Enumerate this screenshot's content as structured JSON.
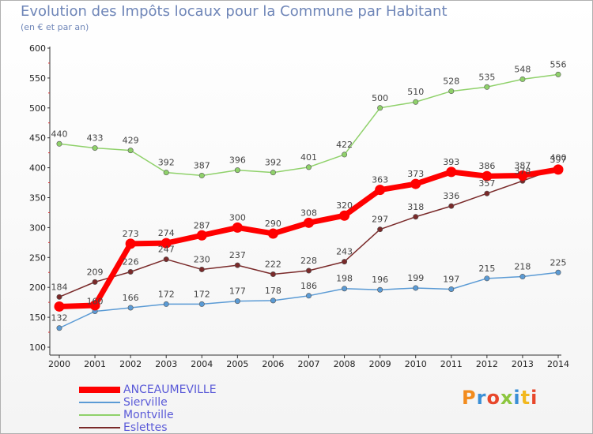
{
  "title": "Evolution des Impôts locaux pour la Commune par Habitant",
  "subtitle": "(en € et par an)",
  "logo": "Proxiti",
  "chart_data": {
    "type": "line",
    "x": [
      "2000",
      "2001",
      "2002",
      "2003",
      "2004",
      "2005",
      "2006",
      "2007",
      "2008",
      "2009",
      "2010",
      "2011",
      "2012",
      "2013",
      "2014"
    ],
    "ylim": [
      100,
      600
    ],
    "yticks": [
      100,
      150,
      200,
      250,
      300,
      350,
      400,
      450,
      500,
      550,
      600
    ],
    "grid": false,
    "legend_position": "bottom-left",
    "series": [
      {
        "name": "ANCEAUMEVILLE",
        "color": "#ff0000",
        "values": [
          168,
          170,
          273,
          274,
          287,
          300,
          290,
          308,
          320,
          363,
          373,
          393,
          386,
          387,
          397
        ],
        "labels": [
          "",
          "",
          "273",
          "274",
          "287",
          "300",
          "290",
          "308",
          "320",
          "363",
          "373",
          "393",
          "386",
          "387",
          "397"
        ]
      },
      {
        "name": "Sierville",
        "color": "#5b9bd5",
        "values": [
          132,
          160,
          166,
          172,
          172,
          177,
          178,
          186,
          198,
          196,
          199,
          197,
          215,
          218,
          225
        ],
        "labels": [
          "132",
          "160",
          "166",
          "172",
          "172",
          "177",
          "178",
          "186",
          "198",
          "196",
          "199",
          "197",
          "215",
          "218",
          "225"
        ]
      },
      {
        "name": "Montville",
        "color": "#8fd16a",
        "values": [
          440,
          433,
          429,
          392,
          387,
          396,
          392,
          401,
          422,
          500,
          510,
          528,
          535,
          548,
          556
        ],
        "labels": [
          "440",
          "433",
          "429",
          "392",
          "387",
          "396",
          "392",
          "401",
          "422",
          "500",
          "510",
          "528",
          "535",
          "548",
          "556"
        ]
      },
      {
        "name": "Eslettes",
        "color": "#7a2a2a",
        "values": [
          184,
          209,
          226,
          247,
          230,
          237,
          222,
          228,
          243,
          297,
          318,
          336,
          357,
          378,
          400
        ],
        "labels": [
          "184",
          "209",
          "226",
          "247",
          "230",
          "237",
          "222",
          "228",
          "243",
          "297",
          "318",
          "336",
          "357",
          "378",
          "400"
        ]
      }
    ]
  }
}
